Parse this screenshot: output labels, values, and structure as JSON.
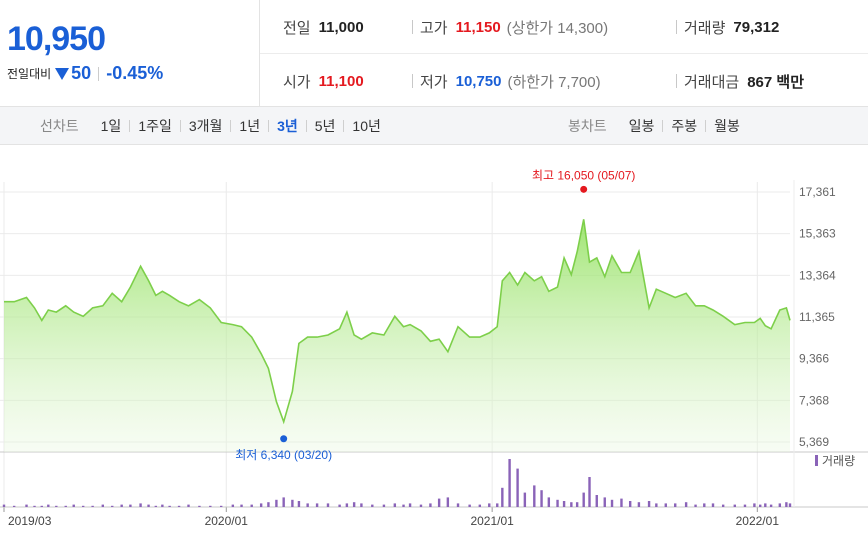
{
  "header": {
    "current_price": "10,950",
    "change_label": "전일대비",
    "change_amount": "50",
    "change_percent": "-0.45%",
    "stats": {
      "prev_close": {
        "label": "전일",
        "value": "11,000"
      },
      "high": {
        "label": "고가",
        "value": "11,150",
        "sub": "(상한가 14,300)"
      },
      "volume": {
        "label": "거래량",
        "value": "79,312"
      },
      "open": {
        "label": "시가",
        "value": "11,100"
      },
      "low": {
        "label": "저가",
        "value": "10,750",
        "sub": "(하한가 7,700)"
      },
      "amount": {
        "label": "거래대금",
        "value": "867 백만"
      }
    }
  },
  "tabs": {
    "line_title": "선차트",
    "line_items": [
      "1일",
      "1주일",
      "3개월",
      "1년",
      "3년",
      "5년",
      "10년"
    ],
    "line_active": "3년",
    "candle_title": "봉차트",
    "candle_items": [
      "일봉",
      "주봉",
      "월봉"
    ]
  },
  "colors": {
    "up": "#e4191f",
    "down": "#1a5fd6",
    "line": "#7dcf4a",
    "volume": "#8a63b8"
  },
  "chart_data": {
    "type": "area",
    "y_ticks": [
      "17,361",
      "15,363",
      "13,364",
      "11,365",
      "9,366",
      "7,368",
      "5,369"
    ],
    "ylim": [
      5369,
      17361
    ],
    "x_tick_labels": [
      "2019/03",
      "2020/01",
      "2021/01",
      "2022/01"
    ],
    "x_tick_dates": [
      "2019-03-01",
      "2020-01-01",
      "2021-01-01",
      "2022-01-01"
    ],
    "x_range": [
      "2019-03-01",
      "2022-02-15"
    ],
    "annotations": {
      "high": {
        "text": "최고 16,050 (05/07)",
        "date": "2021-05-07",
        "value": 16050
      },
      "low": {
        "text": "최저 6,340 (03/20)",
        "date": "2020-03-20",
        "value": 6340
      }
    },
    "volume_legend": "거래량",
    "series": {
      "dates": [
        "2019-03-01",
        "2019-03-15",
        "2019-04-01",
        "2019-04-12",
        "2019-04-22",
        "2019-05-01",
        "2019-05-12",
        "2019-05-25",
        "2019-06-05",
        "2019-06-18",
        "2019-07-01",
        "2019-07-15",
        "2019-07-28",
        "2019-08-10",
        "2019-08-22",
        "2019-09-05",
        "2019-09-16",
        "2019-09-26",
        "2019-10-05",
        "2019-10-15",
        "2019-10-28",
        "2019-11-10",
        "2019-11-25",
        "2019-12-10",
        "2019-12-25",
        "2020-01-10",
        "2020-01-22",
        "2020-02-05",
        "2020-02-18",
        "2020-02-28",
        "2020-03-10",
        "2020-03-20",
        "2020-04-01",
        "2020-04-10",
        "2020-04-22",
        "2020-05-05",
        "2020-05-20",
        "2020-06-05",
        "2020-06-15",
        "2020-06-25",
        "2020-07-05",
        "2020-07-20",
        "2020-08-05",
        "2020-08-20",
        "2020-09-01",
        "2020-09-10",
        "2020-09-25",
        "2020-10-08",
        "2020-10-20",
        "2020-11-01",
        "2020-11-15",
        "2020-12-01",
        "2020-12-15",
        "2020-12-28",
        "2021-01-08",
        "2021-01-15",
        "2021-01-25",
        "2021-02-05",
        "2021-02-15",
        "2021-02-28",
        "2021-03-10",
        "2021-03-20",
        "2021-04-01",
        "2021-04-10",
        "2021-04-20",
        "2021-04-28",
        "2021-05-07",
        "2021-05-15",
        "2021-05-25",
        "2021-06-05",
        "2021-06-15",
        "2021-06-28",
        "2021-07-10",
        "2021-07-22",
        "2021-08-05",
        "2021-08-15",
        "2021-08-28",
        "2021-09-10",
        "2021-09-25",
        "2021-10-08",
        "2021-10-20",
        "2021-11-01",
        "2021-11-15",
        "2021-12-01",
        "2021-12-15",
        "2021-12-28",
        "2022-01-05",
        "2022-01-12",
        "2022-01-20",
        "2022-02-01",
        "2022-02-10",
        "2022-02-15"
      ],
      "values": [
        12100,
        12100,
        12300,
        11800,
        11200,
        11700,
        11600,
        11900,
        11600,
        11400,
        11800,
        11900,
        12500,
        12100,
        12800,
        13800,
        13100,
        12400,
        12600,
        12400,
        12100,
        11900,
        12200,
        11800,
        11100,
        11000,
        10900,
        10400,
        9600,
        8900,
        7300,
        6340,
        7800,
        10100,
        10400,
        10400,
        10500,
        10800,
        11600,
        10500,
        10300,
        10600,
        10500,
        11400,
        10900,
        11000,
        10700,
        10200,
        10300,
        9700,
        10900,
        10400,
        10400,
        10600,
        10900,
        13100,
        13500,
        12900,
        13500,
        13100,
        13300,
        12600,
        12800,
        14200,
        13400,
        14500,
        16050,
        14000,
        14200,
        13300,
        14300,
        13500,
        13500,
        14500,
        11800,
        12700,
        12500,
        12300,
        12500,
        11900,
        11900,
        11700,
        11400,
        11000,
        11100,
        11100,
        11300,
        10950,
        10800,
        11700,
        11800,
        11200
      ],
      "volumes": [
        2,
        1,
        2,
        1,
        1,
        2,
        1,
        1,
        2,
        1,
        1,
        2,
        1,
        2,
        2,
        3,
        2,
        1,
        2,
        1,
        1,
        2,
        1,
        1,
        1,
        2,
        2,
        2,
        3,
        4,
        6,
        8,
        6,
        5,
        3,
        3,
        3,
        2,
        3,
        4,
        3,
        2,
        2,
        3,
        2,
        3,
        2,
        3,
        7,
        8,
        3,
        2,
        2,
        3,
        3,
        16,
        40,
        32,
        12,
        18,
        14,
        8,
        6,
        5,
        4,
        4,
        12,
        25,
        10,
        8,
        6,
        7,
        5,
        4,
        5,
        3,
        3,
        3,
        4,
        2,
        3,
        3,
        2,
        2,
        2,
        3,
        2,
        3,
        2,
        3,
        4,
        3
      ]
    }
  }
}
